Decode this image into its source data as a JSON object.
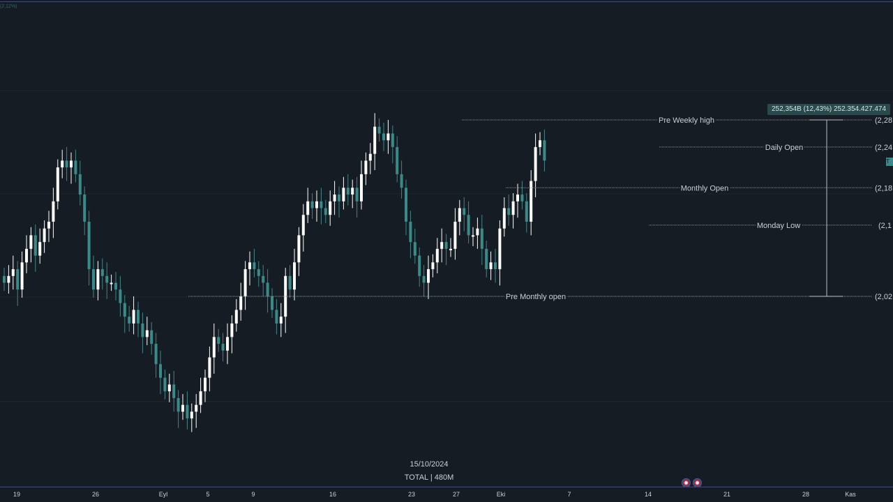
{
  "corner_text": "(2,12%)",
  "measure_label": "252,354B (12,43%) 252.354.427.474",
  "price_tag": "T",
  "footer": {
    "date": "15/10/2024",
    "symbol": "TOTAL | 480M"
  },
  "colors": {
    "background": "#151c23",
    "bull": "#ffffff",
    "bear": "#3b8a8a",
    "level_line": "#8c969c",
    "text": "#c9d2d8"
  },
  "chart_data": {
    "type": "candlestick",
    "symbol": "TOTAL",
    "interval": "480M",
    "x_ticks": [
      "19",
      "26",
      "Eyl",
      "5",
      "9",
      "16",
      "23",
      "27",
      "Eki",
      "7",
      "14",
      "21",
      "28",
      "Kas"
    ],
    "y_ticks": [
      "(2,28",
      "(2,24",
      "(2,18",
      "(2,1",
      "(2,02"
    ],
    "y_unit": "T (trillion USD market cap)",
    "y_range": [
      1.8,
      2.38
    ],
    "levels": [
      {
        "label": "Pre Weekly high",
        "value": 2.28
      },
      {
        "label": "Daily Open",
        "value": 2.24
      },
      {
        "label": "Monthly Open",
        "value": 2.18
      },
      {
        "label": "Monday Low",
        "value": 2.125
      },
      {
        "label": "Pre Monthly open",
        "value": 2.02
      }
    ],
    "measure": {
      "from": 2.02,
      "to": 2.28,
      "text": "252,354B (12,43%) 252.354.427.474"
    },
    "candle_closes": [
      2.04,
      2.05,
      2.06,
      2.03,
      2.07,
      2.09,
      2.11,
      2.08,
      2.1,
      2.12,
      2.13,
      2.16,
      2.21,
      2.22,
      2.21,
      2.22,
      2.2,
      2.17,
      2.13,
      2.06,
      2.03,
      2.06,
      2.05,
      2.04,
      2.04,
      2.03,
      2.01,
      1.99,
      1.98,
      2.0,
      1.98,
      1.96,
      1.97,
      1.95,
      1.92,
      1.9,
      1.88,
      1.89,
      1.87,
      1.85,
      1.86,
      1.84,
      1.85,
      1.86,
      1.88,
      1.9,
      1.93,
      1.96,
      1.95,
      1.94,
      1.96,
      1.98,
      2.0,
      2.02,
      2.06,
      2.07,
      2.06,
      2.05,
      2.04,
      2.02,
      2.0,
      1.98,
      1.99,
      2.05,
      2.03,
      2.07,
      2.11,
      2.14,
      2.16,
      2.15,
      2.16,
      2.15,
      2.14,
      2.16,
      2.17,
      2.16,
      2.18,
      2.17,
      2.18,
      2.16,
      2.2,
      2.22,
      2.23,
      2.27,
      2.26,
      2.25,
      2.26,
      2.24,
      2.2,
      2.18,
      2.13,
      2.1,
      2.08,
      2.05,
      2.04,
      2.06,
      2.07,
      2.09,
      2.1,
      2.09,
      2.09,
      2.13,
      2.15,
      2.14,
      2.11,
      2.11,
      2.12,
      2.09,
      2.06,
      2.07,
      2.06,
      2.12,
      2.15,
      2.14,
      2.16,
      2.17,
      2.16,
      2.13,
      2.19,
      2.24,
      2.25,
      2.22
    ]
  }
}
